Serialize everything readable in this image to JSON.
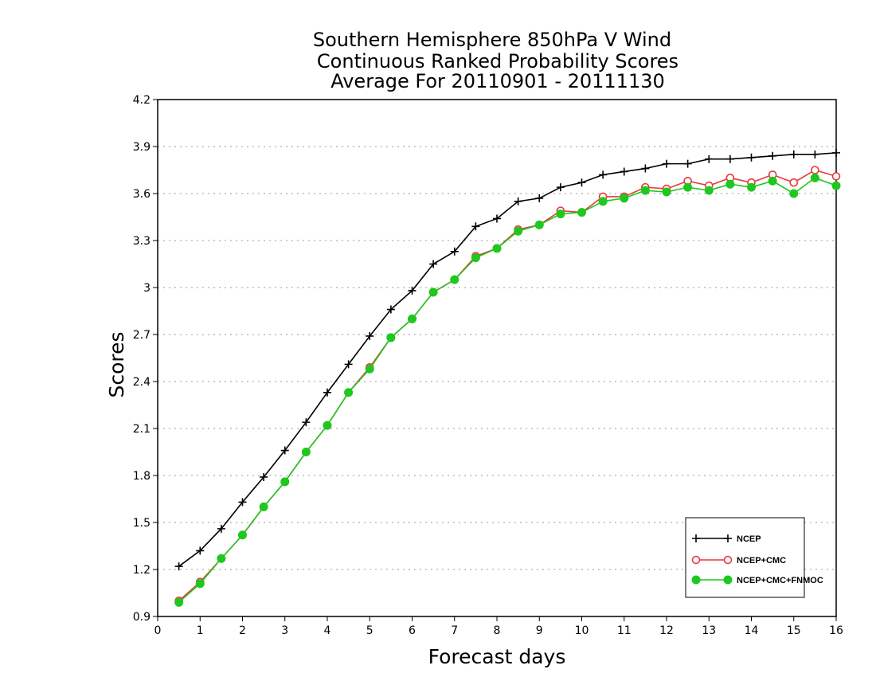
{
  "chart_data": {
    "type": "line",
    "title": [
      "Southern Hemisphere 850hPa V Wind",
      "Continuous Ranked Probability Scores",
      "Average For 20110901 - 20111130"
    ],
    "xlabel": "Forecast days",
    "ylabel": "Scores",
    "xlim": [
      0,
      16
    ],
    "ylim": [
      0.9,
      4.2
    ],
    "xticks": [
      0,
      1,
      2,
      3,
      4,
      5,
      6,
      7,
      8,
      9,
      10,
      11,
      12,
      13,
      14,
      15,
      16
    ],
    "yticks": [
      0.9,
      1.2,
      1.5,
      1.8,
      2.1,
      2.4,
      2.7,
      3,
      3.3,
      3.6,
      3.9,
      4.2
    ],
    "ytick_labels": [
      "0.9",
      "1.2",
      "1.5",
      "1.8",
      "2.1",
      "2.4",
      "2.7",
      "3",
      "3.3",
      "3.6",
      "3.9",
      "4.2"
    ],
    "grid": true,
    "legend_position": "bottom-right",
    "x": [
      0.5,
      1,
      1.5,
      2,
      2.5,
      3,
      3.5,
      4,
      4.5,
      5,
      5.5,
      6,
      6.5,
      7,
      7.5,
      8,
      8.5,
      9,
      9.5,
      10,
      10.5,
      11,
      11.5,
      12,
      12.5,
      13,
      13.5,
      14,
      14.5,
      15,
      15.5,
      16
    ],
    "series": [
      {
        "name": "NCEP",
        "color": "#000000",
        "marker": "plus",
        "values": [
          1.22,
          1.32,
          1.46,
          1.63,
          1.79,
          1.96,
          2.14,
          2.33,
          2.51,
          2.69,
          2.86,
          2.98,
          3.15,
          3.23,
          3.39,
          3.44,
          3.55,
          3.57,
          3.64,
          3.67,
          3.72,
          3.74,
          3.76,
          3.79,
          3.79,
          3.82,
          3.82,
          3.83,
          3.84,
          3.85,
          3.85,
          3.86
        ]
      },
      {
        "name": "NCEP+CMC",
        "color": "#e8383d",
        "marker": "open-circle",
        "values": [
          1.0,
          1.12,
          1.27,
          1.42,
          1.6,
          1.76,
          1.95,
          2.12,
          2.33,
          2.49,
          2.68,
          2.8,
          2.97,
          3.05,
          3.2,
          3.25,
          3.37,
          3.4,
          3.49,
          3.48,
          3.58,
          3.58,
          3.64,
          3.63,
          3.68,
          3.65,
          3.7,
          3.67,
          3.72,
          3.67,
          3.75,
          3.71
        ]
      },
      {
        "name": "NCEP+CMC+FNMOC",
        "color": "#1ec81e",
        "marker": "filled-circle",
        "values": [
          0.99,
          1.11,
          1.27,
          1.42,
          1.6,
          1.76,
          1.95,
          2.12,
          2.33,
          2.48,
          2.68,
          2.8,
          2.97,
          3.05,
          3.19,
          3.25,
          3.36,
          3.4,
          3.47,
          3.48,
          3.55,
          3.57,
          3.62,
          3.61,
          3.64,
          3.62,
          3.66,
          3.64,
          3.68,
          3.6,
          3.7,
          3.65
        ]
      }
    ]
  }
}
